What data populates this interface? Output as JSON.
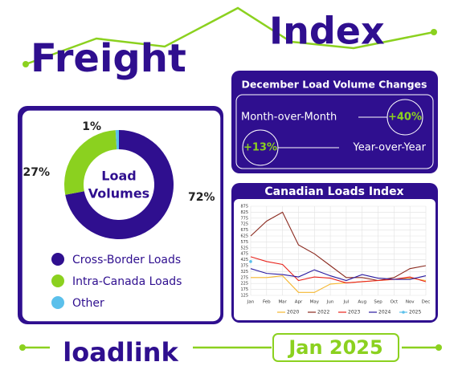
{
  "header": {
    "title_1": "Freight",
    "title_2": "Index"
  },
  "kpi": {
    "title": "December Load Volume Changes",
    "items": [
      {
        "label": "Month-over-Month",
        "value": "+40%"
      },
      {
        "label": "Year-over-Year",
        "value": "+13%"
      }
    ]
  },
  "chart_data": [
    {
      "type": "donut",
      "title_lines": [
        "Load",
        "Volumes"
      ],
      "categories": [
        "Cross-Border Loads",
        "Intra-Canada Loads",
        "Other"
      ],
      "values": [
        72,
        27,
        1
      ],
      "value_labels": [
        "72%",
        "27%",
        "1%"
      ],
      "colors": [
        "#2f0f8f",
        "#8bd11f",
        "#5bc0eb"
      ]
    },
    {
      "type": "line",
      "title": "Canadian Loads Index",
      "categories": [
        "Jan",
        "Feb",
        "Mar",
        "Apr",
        "May",
        "Jun",
        "Jul",
        "Aug",
        "Sep",
        "Oct",
        "Nov",
        "Dec"
      ],
      "series": [
        {
          "name": "2020",
          "color": "#f5b730",
          "values": [
            275,
            275,
            290,
            150,
            150,
            220,
            230,
            240,
            250,
            260,
            270,
            250
          ]
        },
        {
          "name": "2022",
          "color": "#8b2a1f",
          "values": [
            625,
            750,
            825,
            550,
            475,
            375,
            275,
            275,
            250,
            275,
            350,
            375
          ]
        },
        {
          "name": "2023",
          "color": "#e8231c",
          "values": [
            450,
            410,
            385,
            250,
            280,
            270,
            230,
            240,
            250,
            260,
            280,
            240
          ]
        },
        {
          "name": "2024",
          "color": "#2b1aa0",
          "values": [
            350,
            310,
            300,
            280,
            340,
            290,
            250,
            300,
            270,
            260,
            260,
            290
          ]
        },
        {
          "name": "2025",
          "color": "#5bc0eb",
          "markers": true,
          "values": [
            410,
            null,
            null,
            null,
            null,
            null,
            null,
            null,
            null,
            null,
            null,
            null
          ]
        }
      ],
      "ylim": [
        125,
        875
      ],
      "yticks": [
        125,
        175,
        225,
        275,
        325,
        375,
        425,
        475,
        525,
        575,
        625,
        675,
        725,
        775,
        825,
        875
      ],
      "grid": true,
      "legend": "bottom"
    }
  ],
  "footer": {
    "logo": "loadlink",
    "date": "Jan 2025"
  }
}
